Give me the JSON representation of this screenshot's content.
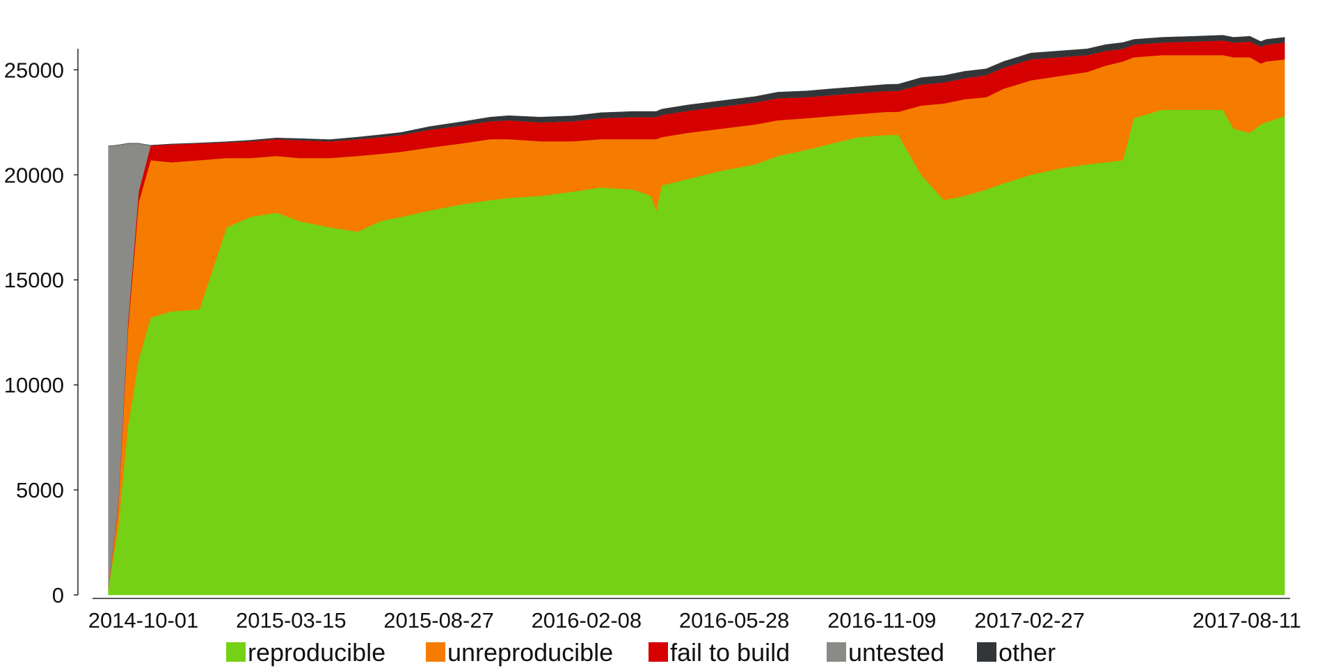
{
  "chart_data": {
    "type": "area",
    "stacked": true,
    "title": "",
    "xlabel": "",
    "ylabel": "",
    "x_ticks": [
      "2014-10-01",
      "2015-03-15",
      "2015-08-27",
      "2016-02-08",
      "2016-05-28",
      "2016-11-09",
      "2017-02-27",
      "2017-08-11"
    ],
    "ylim": [
      0,
      27000
    ],
    "y_ticks": [
      0,
      5000,
      10000,
      15000,
      20000,
      25000
    ],
    "y_tick_labels": [
      "0",
      "5000",
      "10000",
      "15000",
      "20000",
      "25000"
    ],
    "grid": false,
    "legend": "bottom",
    "x": [
      "2014-08-23",
      "2014-09-01",
      "2014-09-10",
      "2014-09-20",
      "2014-10-01",
      "2014-10-20",
      "2014-11-15",
      "2014-12-10",
      "2015-01-01",
      "2015-01-25",
      "2015-02-15",
      "2015-03-15",
      "2015-04-10",
      "2015-05-01",
      "2015-05-20",
      "2015-06-15",
      "2015-07-15",
      "2015-08-10",
      "2015-08-27",
      "2015-09-25",
      "2015-10-25",
      "2015-11-20",
      "2015-12-20",
      "2016-01-05",
      "2016-01-10",
      "2016-01-15",
      "2016-02-08",
      "2016-03-10",
      "2016-04-10",
      "2016-05-01",
      "2016-05-28",
      "2016-06-20",
      "2016-07-15",
      "2016-08-10",
      "2016-08-20",
      "2016-09-10",
      "2016-10-01",
      "2016-10-20",
      "2016-11-09",
      "2016-11-25",
      "2016-12-20",
      "2017-01-15",
      "2017-02-10",
      "2017-02-27",
      "2017-03-15",
      "2017-03-25",
      "2017-04-20",
      "2017-05-20",
      "2017-06-15",
      "2017-06-25",
      "2017-07-10",
      "2017-07-20",
      "2017-07-25",
      "2017-08-11"
    ],
    "series": [
      {
        "name": "reproducible",
        "color": "#74d116",
        "values": [
          300,
          3200,
          8000,
          11200,
          13200,
          13500,
          13600,
          17500,
          18000,
          18200,
          17800,
          17500,
          17300,
          17800,
          18000,
          18300,
          18600,
          18800,
          18900,
          19000,
          19200,
          19400,
          19300,
          19000,
          18300,
          19500,
          19800,
          20200,
          20500,
          20900,
          21200,
          21500,
          21800,
          21900,
          21900,
          20000,
          18800,
          19000,
          19300,
          19600,
          20000,
          20300,
          20500,
          20600,
          20700,
          22700,
          23100,
          23100,
          23100,
          22200,
          22000,
          22400,
          22500,
          22800
        ]
      },
      {
        "name": "unreproducible",
        "color": "#f57c00",
        "values": [
          50,
          900,
          4600,
          7500,
          7500,
          7100,
          7100,
          3300,
          2800,
          2700,
          3000,
          3300,
          3600,
          3200,
          3100,
          3000,
          2900,
          2900,
          2800,
          2600,
          2400,
          2300,
          2400,
          2700,
          3400,
          2300,
          2200,
          2000,
          1900,
          1700,
          1500,
          1300,
          1100,
          1100,
          1100,
          3300,
          4600,
          4600,
          4400,
          4500,
          4500,
          4400,
          4400,
          4600,
          4700,
          2900,
          2600,
          2600,
          2600,
          3400,
          3600,
          2900,
          2900,
          2700
        ]
      },
      {
        "name": "fail to build",
        "color": "#d50000",
        "values": [
          20,
          120,
          300,
          500,
          700,
          850,
          800,
          750,
          800,
          800,
          850,
          800,
          800,
          800,
          800,
          850,
          850,
          850,
          900,
          900,
          950,
          1000,
          1050,
          1050,
          1050,
          1050,
          1050,
          1050,
          1050,
          1050,
          1000,
          1000,
          1000,
          1000,
          1000,
          1000,
          1000,
          1000,
          1050,
          1000,
          1000,
          900,
          800,
          700,
          600,
          600,
          600,
          650,
          700,
          700,
          750,
          800,
          800,
          800
        ]
      },
      {
        "name": "untested",
        "color": "#8a8b87",
        "values": [
          21000,
          17200,
          8600,
          2300,
          0,
          0,
          0,
          0,
          0,
          0,
          0,
          0,
          0,
          0,
          0,
          0,
          0,
          0,
          0,
          0,
          0,
          0,
          0,
          0,
          0,
          0,
          0,
          0,
          0,
          0,
          0,
          0,
          0,
          0,
          0,
          0,
          0,
          0,
          0,
          0,
          0,
          0,
          0,
          0,
          0,
          0,
          0,
          0,
          0,
          0,
          0,
          0,
          0,
          0
        ]
      },
      {
        "name": "other",
        "color": "#333639",
        "values": [
          0,
          0,
          0,
          0,
          10,
          20,
          20,
          30,
          50,
          60,
          80,
          80,
          100,
          110,
          120,
          150,
          180,
          200,
          220,
          250,
          260,
          260,
          270,
          270,
          270,
          280,
          280,
          280,
          280,
          290,
          300,
          300,
          300,
          310,
          320,
          330,
          330,
          330,
          300,
          300,
          300,
          300,
          300,
          300,
          300,
          250,
          250,
          250,
          250,
          250,
          250,
          250,
          250,
          250
        ]
      }
    ]
  }
}
